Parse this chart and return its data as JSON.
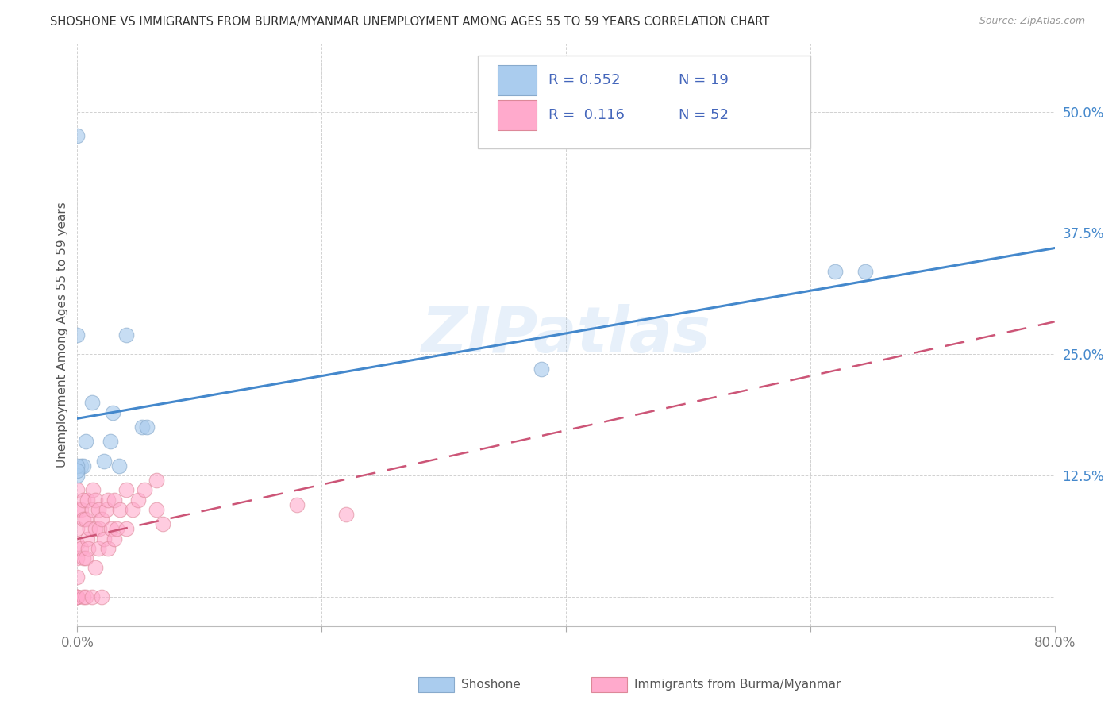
{
  "title": "SHOSHONE VS IMMIGRANTS FROM BURMA/MYANMAR UNEMPLOYMENT AMONG AGES 55 TO 59 YEARS CORRELATION CHART",
  "source": "Source: ZipAtlas.com",
  "ylabel": "Unemployment Among Ages 55 to 59 years",
  "xlim": [
    0.0,
    0.8
  ],
  "ylim": [
    -0.03,
    0.57
  ],
  "xticks": [
    0.0,
    0.2,
    0.4,
    0.6,
    0.8
  ],
  "xticklabels": [
    "0.0%",
    "",
    "",
    "",
    "80.0%"
  ],
  "ytick_positions": [
    0.0,
    0.125,
    0.25,
    0.375,
    0.5
  ],
  "ytick_labels": [
    "",
    "12.5%",
    "25.0%",
    "37.5%",
    "50.0%"
  ],
  "shoshone_R": 0.552,
  "shoshone_N": 19,
  "burma_R": 0.116,
  "burma_N": 52,
  "shoshone_color": "#AACCEE",
  "shoshone_edge_color": "#88AACC",
  "shoshone_line_color": "#4488CC",
  "burma_color": "#FFAACC",
  "burma_edge_color": "#DD8899",
  "burma_line_color": "#CC5577",
  "legend_text_color": "#4466BB",
  "yaxis_tick_color": "#4488CC",
  "watermark": "ZIPatlas",
  "shoshone_x": [
    0.003,
    0.005,
    0.007,
    0.012,
    0.022,
    0.027,
    0.029,
    0.034,
    0.04,
    0.053,
    0.057,
    0.0,
    0.0,
    0.0,
    0.0,
    0.38,
    0.62,
    0.645,
    0.0
  ],
  "shoshone_y": [
    0.135,
    0.135,
    0.16,
    0.2,
    0.14,
    0.16,
    0.19,
    0.135,
    0.27,
    0.175,
    0.175,
    0.475,
    0.27,
    0.125,
    0.135,
    0.235,
    0.335,
    0.335,
    0.13
  ],
  "burma_x": [
    0.0,
    0.0,
    0.0,
    0.0,
    0.0,
    0.0,
    0.0,
    0.0,
    0.0,
    0.003,
    0.003,
    0.005,
    0.005,
    0.005,
    0.005,
    0.007,
    0.007,
    0.007,
    0.008,
    0.008,
    0.009,
    0.01,
    0.012,
    0.012,
    0.013,
    0.015,
    0.015,
    0.015,
    0.017,
    0.017,
    0.018,
    0.02,
    0.02,
    0.022,
    0.024,
    0.025,
    0.025,
    0.028,
    0.03,
    0.03,
    0.032,
    0.035,
    0.04,
    0.04,
    0.045,
    0.05,
    0.055,
    0.065,
    0.065,
    0.07,
    0.18,
    0.22
  ],
  "burma_y": [
    0.0,
    0.0,
    0.0,
    0.02,
    0.04,
    0.055,
    0.07,
    0.09,
    0.11,
    0.05,
    0.09,
    0.0,
    0.04,
    0.08,
    0.1,
    0.0,
    0.04,
    0.08,
    0.06,
    0.1,
    0.05,
    0.07,
    0.0,
    0.09,
    0.11,
    0.03,
    0.07,
    0.1,
    0.05,
    0.09,
    0.07,
    0.0,
    0.08,
    0.06,
    0.09,
    0.05,
    0.1,
    0.07,
    0.06,
    0.1,
    0.07,
    0.09,
    0.07,
    0.11,
    0.09,
    0.1,
    0.11,
    0.09,
    0.12,
    0.075,
    0.095,
    0.085
  ]
}
